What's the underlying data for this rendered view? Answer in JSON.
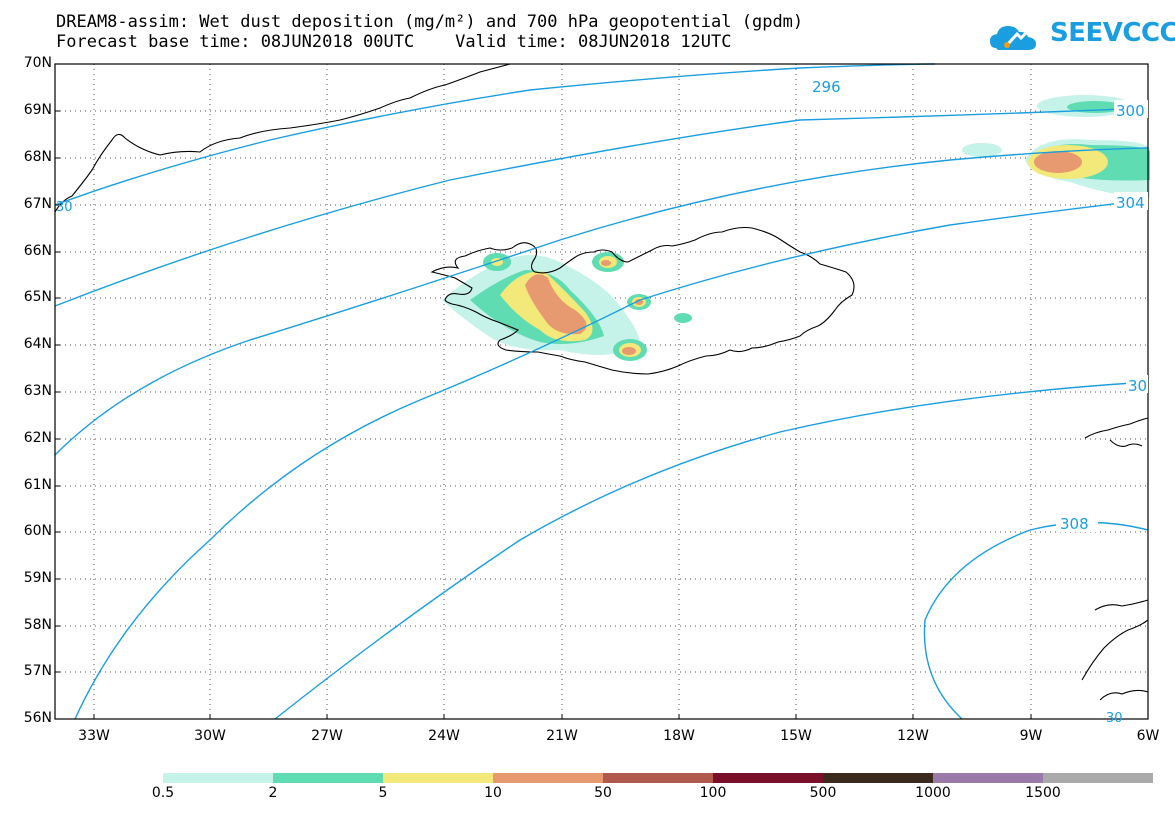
{
  "title_line1": "DREAM8-assim: Wet dust deposition (mg/m²) and 700 hPa geopotential (gpdm)",
  "title_line2": "Forecast base time: 08JUN2018 00UTC    Valid time: 08JUN2018 12UTC",
  "logo_text": "SEEVCCC",
  "lat_labels": [
    "70N",
    "69N",
    "68N",
    "67N",
    "66N",
    "65N",
    "64N",
    "63N",
    "62N",
    "61N",
    "60N",
    "59N",
    "58N",
    "57N",
    "56N"
  ],
  "lon_labels": [
    "33W",
    "30W",
    "27W",
    "24W",
    "21W",
    "18W",
    "15W",
    "12W",
    "9W",
    "6W"
  ],
  "contour_labels": [
    "296",
    "300",
    "304",
    "30",
    "308",
    "30",
    "30"
  ],
  "colorbar": {
    "colors": [
      "#c5f2e9",
      "#5fdcb2",
      "#f3e87a",
      "#e79a6f",
      "#b05a4e",
      "#7a0f2a",
      "#3b2a1e",
      "#9a7aa8",
      "#aaaaaa"
    ],
    "labels": [
      "0.5",
      "2",
      "5",
      "10",
      "50",
      "100",
      "500",
      "1000",
      "1500"
    ]
  },
  "colors": {
    "contour": "#1a9ee0",
    "coast": "#000000"
  }
}
